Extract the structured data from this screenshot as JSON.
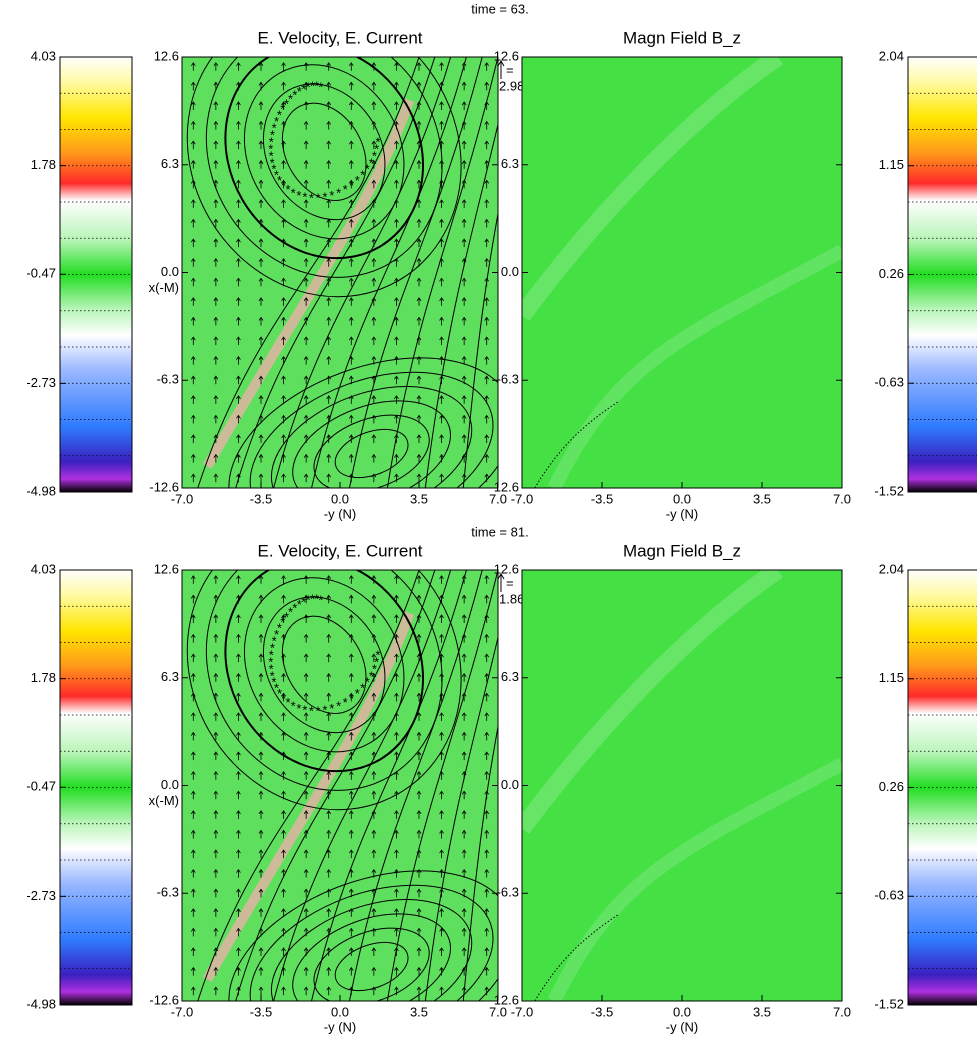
{
  "panels": [
    {
      "time": "time = 63.",
      "colorbar_left": {
        "lim": [
          -4.98,
          4.03
        ],
        "ticks": [
          4.03,
          1.78,
          -0.47,
          -2.73,
          -4.98
        ]
      },
      "velocity": {
        "title": "E. Velocity, E. Current",
        "xlabel": "-y (N)",
        "ylabel": "x(-M)",
        "arrow_eq": "=",
        "arrow_scale": "2.98",
        "xlim": [
          -7,
          7
        ],
        "ylim": [
          -12.6,
          12.6
        ],
        "xticks": [
          {
            "value": -7,
            "label": "-7.0"
          },
          -3.5,
          {
            "value": 0,
            "label": "0.0"
          },
          3.5,
          {
            "value": 7,
            "label": "7.0"
          }
        ],
        "yticks": [
          12.6,
          6.3,
          {
            "value": 0,
            "label": "0.0"
          },
          -6.3,
          -12.6
        ]
      },
      "field": {
        "title": "Magn Field B_z",
        "xlabel": "-y (N)",
        "xlim": [
          -7,
          7
        ],
        "ylim": [
          -12.6,
          12.6
        ],
        "xticks": [
          {
            "value": -7,
            "label": "-7.0"
          },
          -3.5,
          {
            "value": 0,
            "label": "0.0"
          },
          3.5,
          {
            "value": 7,
            "label": "7.0"
          }
        ],
        "yticks": [
          12.6,
          6.3,
          {
            "value": 0,
            "label": "0.0"
          },
          -6.3,
          -12.6
        ]
      },
      "colorbar_right": {
        "lim": [
          -1.52,
          2.04
        ],
        "ticks": [
          2.04,
          1.15,
          0.26,
          -0.63,
          -1.52
        ]
      }
    },
    {
      "time": "time = 81.",
      "colorbar_left": {
        "lim": [
          -4.98,
          4.03
        ],
        "ticks": [
          4.03,
          1.78,
          -0.47,
          -2.73,
          -4.98
        ]
      },
      "velocity": {
        "title": "E. Velocity, E. Current",
        "xlabel": "-y (N)",
        "ylabel": "x(-M)",
        "arrow_eq": "=",
        "arrow_scale": "1.86",
        "xlim": [
          -7,
          7
        ],
        "ylim": [
          -12.6,
          12.6
        ],
        "xticks": [
          {
            "value": -7,
            "label": "-7.0"
          },
          -3.5,
          {
            "value": 0,
            "label": "0.0"
          },
          3.5,
          {
            "value": 7,
            "label": "7.0"
          }
        ],
        "yticks": [
          12.6,
          6.3,
          {
            "value": 0,
            "label": "0.0"
          },
          -6.3,
          -12.6
        ]
      },
      "field": {
        "title": "Magn Field B_z",
        "xlabel": "-y (N)",
        "xlim": [
          -7,
          7
        ],
        "ylim": [
          -12.6,
          12.6
        ],
        "xticks": [
          {
            "value": -7,
            "label": "-7.0"
          },
          -3.5,
          {
            "value": 0,
            "label": "0.0"
          },
          3.5,
          {
            "value": 7,
            "label": "7.0"
          }
        ],
        "yticks": [
          12.6,
          6.3,
          {
            "value": 0,
            "label": "0.0"
          },
          -6.3,
          -12.6
        ]
      },
      "colorbar_right": {
        "lim": [
          -1.52,
          2.04
        ],
        "ticks": [
          2.04,
          1.15,
          0.26,
          -0.63,
          -1.52
        ]
      }
    }
  ]
}
